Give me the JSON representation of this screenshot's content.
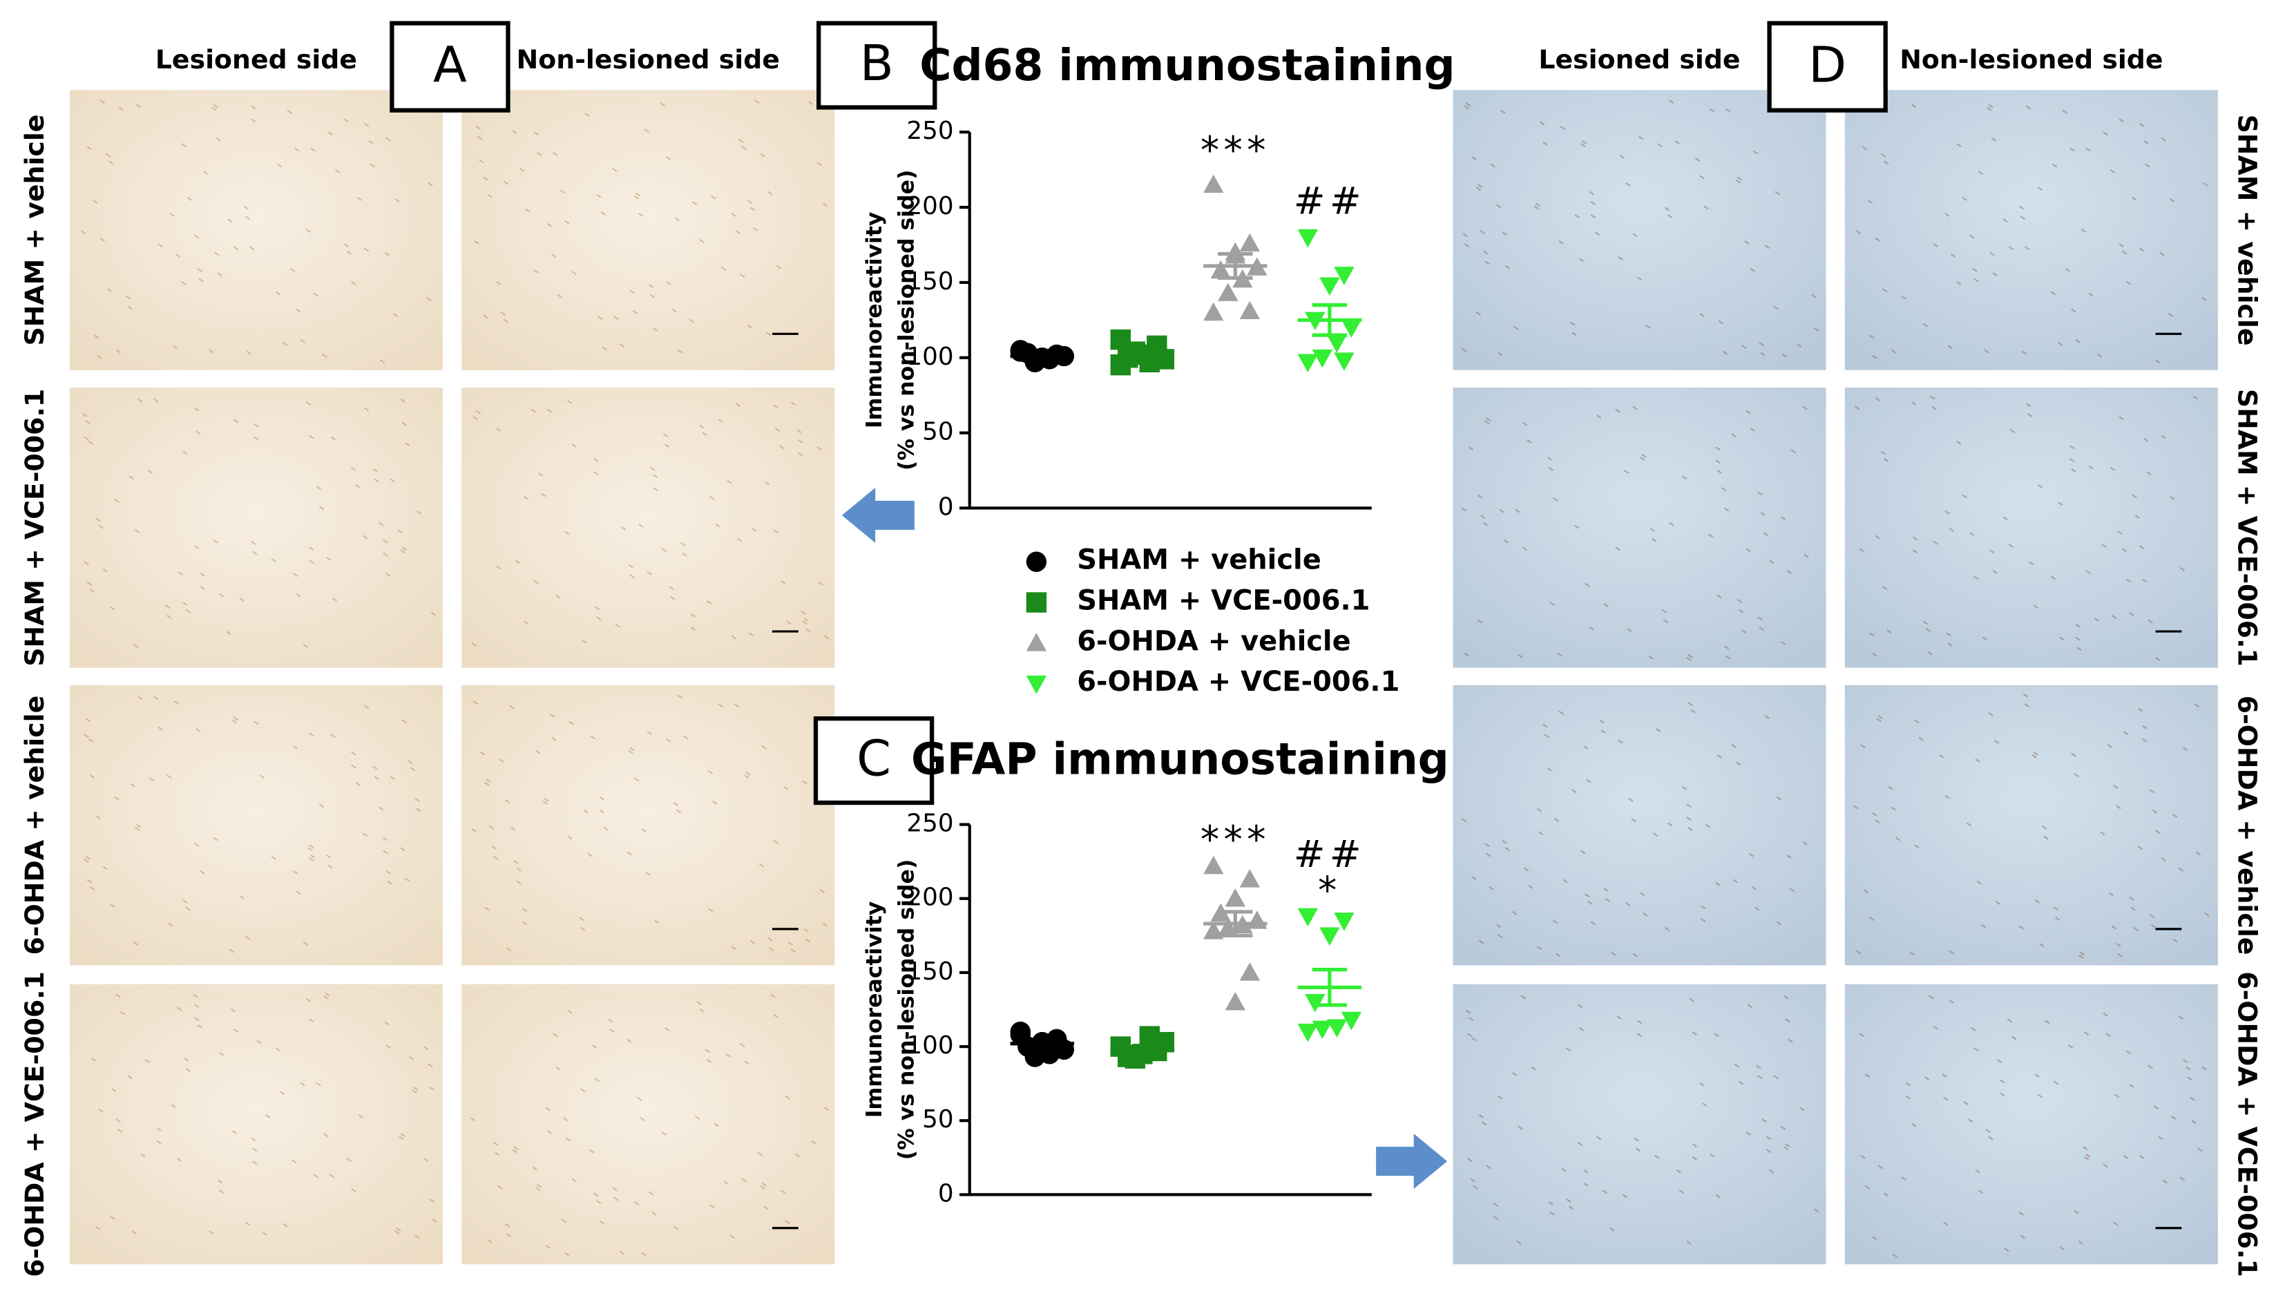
{
  "panels": {
    "A": "A",
    "B": "B",
    "C": "C",
    "D": "D"
  },
  "column_headers": {
    "A": [
      "Lesioned side",
      "Non-lesioned side"
    ],
    "D": [
      "Lesioned side",
      "Non-lesioned side"
    ]
  },
  "row_labels": {
    "A": [
      "SHAM + vehicle",
      "SHAM + VCE-006.1",
      "6-OHDA + vehicle",
      "6-OHDA + VCE-006.1"
    ],
    "D": [
      "SHAM + vehicle",
      "SHAM + VCE-006.1",
      "6-OHDA + vehicle",
      "6-OHDA + VCE-006.1"
    ]
  },
  "chart_data": [
    {
      "type": "scatter",
      "title": "Cd68 immunostaining",
      "ylabel": [
        "Immunoreactivity",
        "(% vs non-lesioned side)"
      ],
      "ylim": [
        0,
        250
      ],
      "yticks": [
        0,
        50,
        100,
        150,
        200,
        250
      ],
      "annotations": [
        "***",
        "##"
      ],
      "series": [
        {
          "name": "SHAM + vehicle",
          "color": "#000000",
          "marker": "circle",
          "values": [
            104,
            102,
            100,
            103,
            101,
            99,
            97,
            105
          ],
          "mean": 101,
          "sem": 1
        },
        {
          "name": "SHAM + VCE-006.1",
          "color": "#1a8a1a",
          "marker": "square",
          "values": [
            112,
            108,
            102,
            100,
            99,
            97,
            104,
            95
          ],
          "mean": 101,
          "sem": 2
        },
        {
          "name": "6-OHDA + vehicle",
          "color": "#a0a0a0",
          "marker": "triangle-up",
          "values": [
            215,
            176,
            168,
            158,
            160,
            152,
            143,
            130,
            131,
            170
          ],
          "mean": 161,
          "sem": 8
        },
        {
          "name": "6-OHDA + VCE-006.1",
          "color": "#33ee33",
          "marker": "triangle-down",
          "values": [
            180,
            155,
            148,
            125,
            120,
            110,
            100,
            97,
            98
          ],
          "mean": 125,
          "sem": 10
        }
      ]
    },
    {
      "type": "scatter",
      "title": "GFAP immunostaining",
      "ylabel": [
        "Immunoreactivity",
        "(% vs non-lesioned side)"
      ],
      "ylim": [
        0,
        250
      ],
      "yticks": [
        0,
        50,
        100,
        150,
        200,
        250
      ],
      "annotations": [
        "***",
        "##",
        "*"
      ],
      "series": [
        {
          "color": "#000000",
          "marker": "circle",
          "values": [
            108,
            105,
            103,
            100,
            98,
            95,
            93,
            110
          ],
          "mean": 102,
          "sem": 2
        },
        {
          "color": "#1a8a1a",
          "marker": "square",
          "values": [
            100,
            97,
            95,
            93,
            103,
            107,
            92
          ],
          "mean": 98,
          "sem": 2
        },
        {
          "color": "#a0a0a0",
          "marker": "triangle-up",
          "values": [
            222,
            213,
            200,
            190,
            185,
            182,
            180,
            178,
            150,
            130
          ],
          "mean": 183,
          "sem": 8
        },
        {
          "color": "#33ee33",
          "marker": "triangle-down",
          "values": [
            188,
            185,
            175,
            130,
            118,
            113,
            112,
            110
          ],
          "mean": 140,
          "sem": 12
        }
      ]
    }
  ]
}
